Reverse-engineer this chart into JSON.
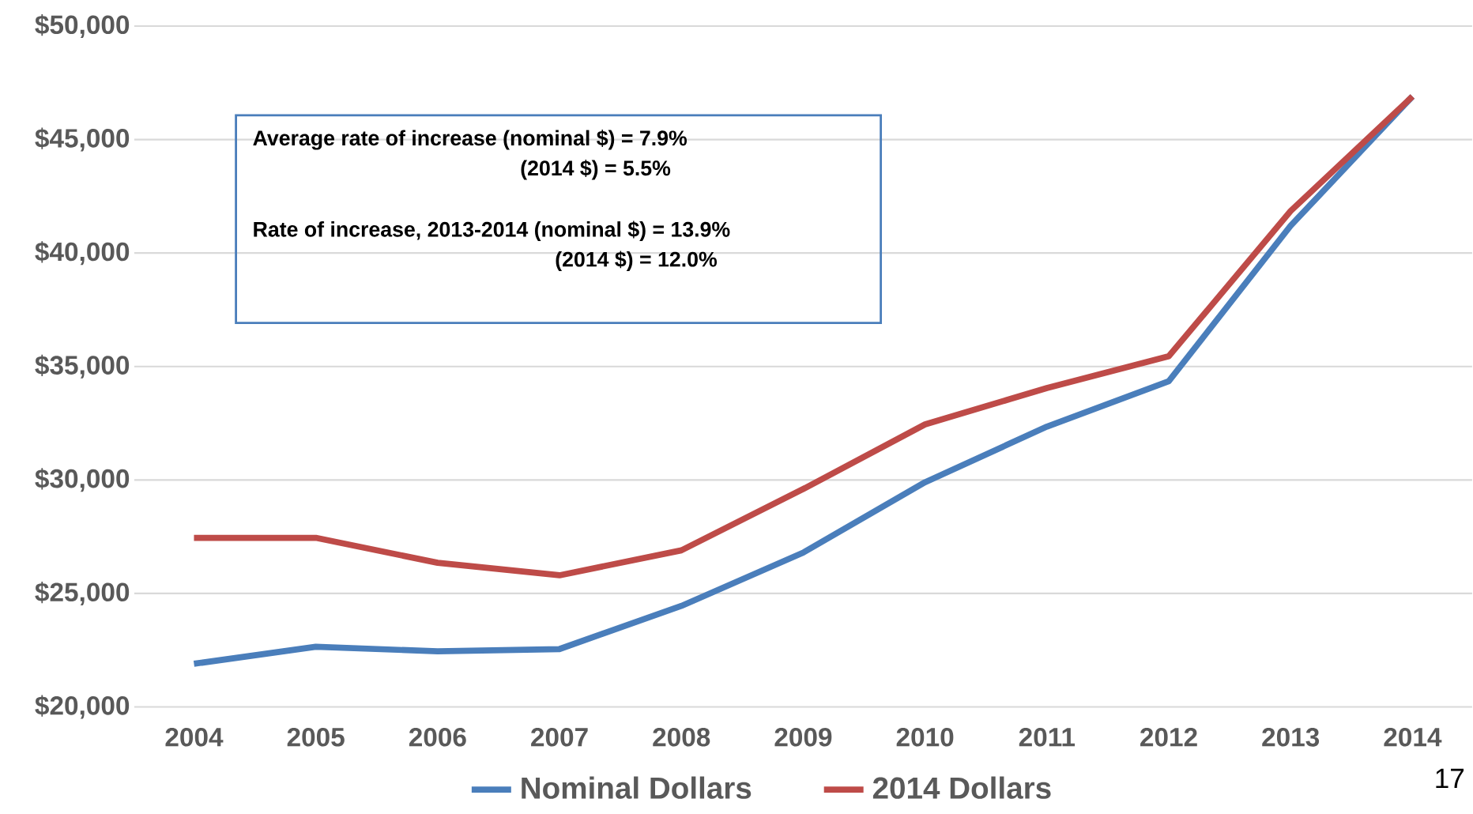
{
  "chart_data": {
    "type": "line",
    "categories": [
      "2004",
      "2005",
      "2006",
      "2007",
      "2008",
      "2009",
      "2010",
      "2011",
      "2012",
      "2013",
      "2014"
    ],
    "series": [
      {
        "name": "Nominal Dollars",
        "color": "#4a7ebb",
        "values": [
          21900,
          22650,
          22450,
          22550,
          24450,
          26800,
          29900,
          32350,
          34350,
          41200,
          46900
        ]
      },
      {
        "name": "2014 Dollars",
        "color": "#be4b48",
        "values": [
          27450,
          27450,
          26350,
          25800,
          26900,
          29600,
          32450,
          34050,
          35450,
          41850,
          46900
        ]
      }
    ],
    "ylim": [
      20000,
      50000
    ],
    "yticks": [
      {
        "value": 20000,
        "label": "$20,000"
      },
      {
        "value": 25000,
        "label": "$25,000"
      },
      {
        "value": 30000,
        "label": "$30,000"
      },
      {
        "value": 35000,
        "label": "$35,000"
      },
      {
        "value": 40000,
        "label": "$40,000"
      },
      {
        "value": 45000,
        "label": "$45,000"
      },
      {
        "value": 50000,
        "label": "$50,000"
      }
    ],
    "grid": "y",
    "legend": "bottom",
    "marker": "none",
    "line_style": "solid",
    "annotations": [
      "Average rate of increase (nominal $) = 7.9%",
      "(2014 $) = 5.5%",
      "Rate of increase, 2013-2014 (nominal $) = 13.9%",
      "(2014 $) = 12.0%",
      "17"
    ]
  }
}
